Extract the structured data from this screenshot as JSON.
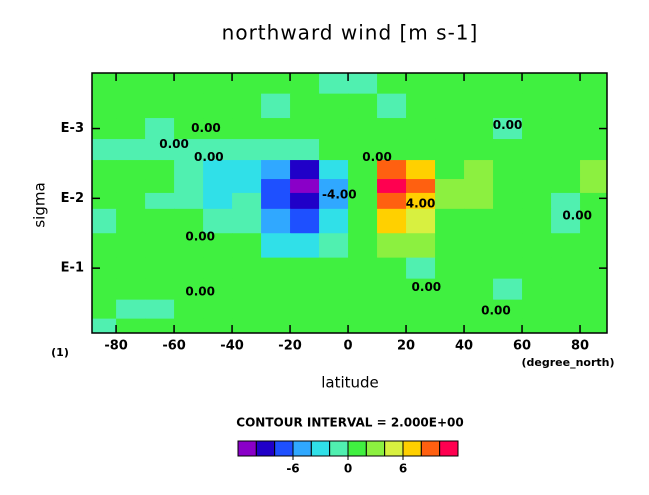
{
  "chart_data": {
    "type": "contour",
    "title": "northward wind [m s-1]",
    "xlabel": "latitude",
    "ylabel": "sigma",
    "x_unit_label": "(degree_north)",
    "corner_label": "(1)",
    "interval_label": "CONTOUR INTERVAL = 2.000E+00",
    "xlim": [
      -88.3,
      89.3
    ],
    "xticks": [
      -80,
      -60,
      -40,
      -20,
      0,
      20,
      40,
      60,
      80
    ],
    "ylim": [
      0.85,
      0.00016
    ],
    "ylog": true,
    "yticks": [
      {
        "value": 0.1,
        "label": "E-1"
      },
      {
        "value": 0.01,
        "label": "E-2"
      },
      {
        "value": 0.001,
        "label": "E-3"
      }
    ],
    "x": [
      -85,
      -75,
      -65,
      -55,
      -45,
      -35,
      -25,
      -15,
      -5,
      5,
      15,
      25,
      35,
      45,
      55,
      65,
      75,
      85
    ],
    "y": [
      0.0002,
      0.0005,
      0.001,
      0.002,
      0.004,
      0.007,
      0.01,
      0.02,
      0.05,
      0.1,
      0.2,
      0.4,
      0.7
    ],
    "z": [
      [
        1,
        1,
        1,
        1,
        1,
        1,
        1,
        1,
        -1,
        -1,
        1,
        1,
        1,
        1,
        1,
        1,
        1,
        1
      ],
      [
        1,
        1,
        1,
        1,
        1,
        1,
        -1,
        1,
        1,
        1,
        -1,
        1,
        1,
        1,
        1,
        1,
        1,
        1
      ],
      [
        1,
        1,
        -1,
        1,
        1,
        1,
        1,
        1,
        1,
        1,
        1,
        1,
        1,
        1,
        -1,
        1,
        1,
        1
      ],
      [
        -1,
        -1,
        -1,
        -1,
        -1,
        -1,
        -1,
        -1,
        1,
        1,
        1,
        1,
        1,
        1,
        1,
        1,
        1,
        1
      ],
      [
        1,
        1,
        1,
        -1,
        -3,
        -3,
        -5,
        -9,
        -3,
        1,
        9,
        7,
        1,
        3,
        1,
        1,
        1,
        3
      ],
      [
        1,
        1,
        1,
        -1,
        -3,
        -3,
        -7,
        -11,
        -5,
        1,
        11,
        9,
        3,
        3,
        1,
        1,
        1,
        3
      ],
      [
        1,
        1,
        -1,
        -1,
        -3,
        -1,
        -7,
        -9,
        -5,
        1,
        9,
        7,
        3,
        3,
        1,
        1,
        -1,
        1
      ],
      [
        -1,
        1,
        1,
        1,
        -1,
        -1,
        -5,
        -7,
        -3,
        1,
        7,
        5,
        1,
        1,
        1,
        1,
        -1,
        1
      ],
      [
        1,
        1,
        1,
        1,
        1,
        1,
        -3,
        -3,
        -1,
        1,
        3,
        3,
        1,
        1,
        1,
        1,
        1,
        1
      ],
      [
        1,
        1,
        1,
        1,
        1,
        1,
        1,
        1,
        1,
        1,
        1,
        -1,
        1,
        1,
        1,
        1,
        1,
        1
      ],
      [
        1,
        1,
        1,
        1,
        1,
        1,
        1,
        1,
        1,
        1,
        1,
        1,
        1,
        1,
        -1,
        1,
        1,
        1
      ],
      [
        1,
        -1,
        -1,
        1,
        1,
        1,
        1,
        1,
        1,
        1,
        1,
        1,
        1,
        1,
        1,
        1,
        1,
        1
      ],
      [
        -1,
        1,
        1,
        1,
        1,
        1,
        1,
        1,
        1,
        1,
        1,
        1,
        1,
        1,
        1,
        1,
        1,
        1
      ]
    ],
    "levels": [
      -10,
      -8,
      -6,
      -4,
      -2,
      0,
      2,
      4,
      6,
      8,
      10
    ],
    "colors": [
      "#8a00c8",
      "#2000c8",
      "#1e50ff",
      "#30a8ff",
      "#30e0e8",
      "#50f0b0",
      "#40f040",
      "#8cf040",
      "#d8f040",
      "#ffd000",
      "#ff6010",
      "#ff0050"
    ],
    "colorbar_ticks": [
      -6,
      0,
      6
    ],
    "contour_labels": [
      {
        "text": "0.00",
        "x": -49,
        "y": 0.001
      },
      {
        "text": "0.00",
        "x": -60,
        "y": 0.0017
      },
      {
        "text": "0.00",
        "x": -48,
        "y": 0.0026
      },
      {
        "text": "-4.00",
        "x": -3,
        "y": 0.009
      },
      {
        "text": "0.00",
        "x": 10,
        "y": 0.0026
      },
      {
        "text": "4.00",
        "x": 25,
        "y": 0.012
      },
      {
        "text": "0.00",
        "x": 55,
        "y": 0.0009
      },
      {
        "text": "0.00",
        "x": 79,
        "y": 0.018
      },
      {
        "text": "0.00",
        "x": -51,
        "y": 0.036
      },
      {
        "text": "0.00",
        "x": -51,
        "y": 0.22
      },
      {
        "text": "0.00",
        "x": 27,
        "y": 0.19
      },
      {
        "text": "0.00",
        "x": 51,
        "y": 0.41
      }
    ]
  }
}
